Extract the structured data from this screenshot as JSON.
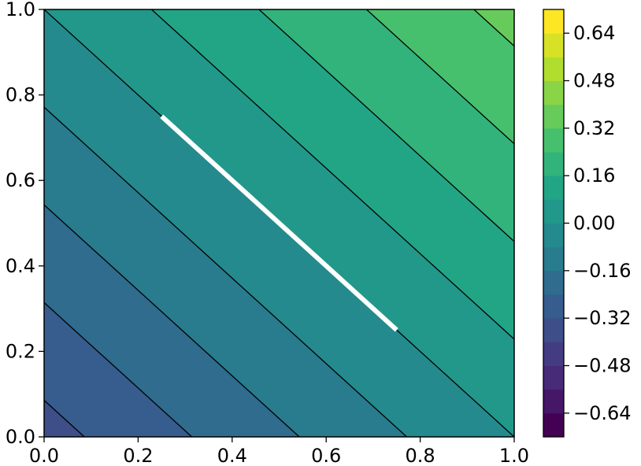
{
  "chart_data": {
    "type": "contourf",
    "title": "",
    "xlabel": "",
    "ylabel": "",
    "xlim": [
      0.0,
      1.0
    ],
    "ylim": [
      0.0,
      1.0
    ],
    "x_ticks": [
      "0.0",
      "0.2",
      "0.4",
      "0.6",
      "0.8",
      "1.0"
    ],
    "y_ticks": [
      "0.0",
      "0.2",
      "0.4",
      "0.6",
      "0.8",
      "1.0"
    ],
    "field": "f(x, y) = (x + y - 1) * 0.35",
    "contour_levels": [
      -0.72,
      -0.64,
      -0.56,
      -0.48,
      -0.4,
      -0.32,
      -0.24,
      -0.16,
      -0.08,
      0.0,
      0.08,
      0.16,
      0.24,
      0.32,
      0.4,
      0.48,
      0.56,
      0.64,
      0.72
    ],
    "colormap": "viridis",
    "contour_line_color": "#000000",
    "grid": false,
    "colorbar": {
      "vmin": -0.72,
      "vmax": 0.72,
      "ticks": [
        "0.64",
        "0.48",
        "0.32",
        "0.16",
        "0.00",
        "−0.16",
        "−0.32",
        "−0.48",
        "−0.64"
      ],
      "tick_values": [
        0.64,
        0.48,
        0.32,
        0.16,
        0.0,
        -0.16,
        -0.32,
        -0.48,
        -0.64
      ]
    },
    "line_segment": {
      "x": [
        0.25,
        0.75
      ],
      "y": [
        0.75,
        0.25
      ],
      "color": "#ffffff"
    }
  }
}
